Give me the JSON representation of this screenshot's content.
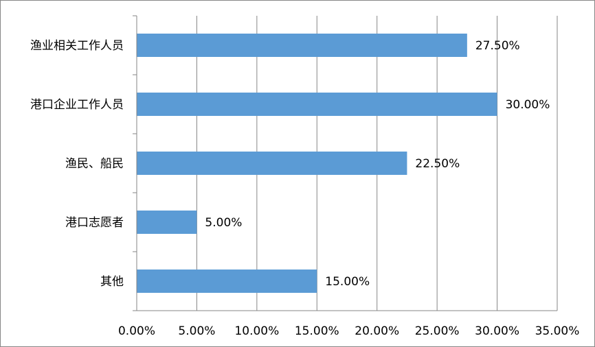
{
  "chart_data": {
    "type": "bar",
    "orientation": "horizontal",
    "categories": [
      "渔业相关工作人员",
      "港口企业工作人员",
      "渔民、船民",
      "港口志愿者",
      "其他"
    ],
    "values": [
      27.5,
      30.0,
      22.5,
      5.0,
      15.0
    ],
    "data_labels": [
      "27.50%",
      "30.00%",
      "22.50%",
      "5.00%",
      "15.00%"
    ],
    "x_ticks": [
      "0.00%",
      "5.00%",
      "10.00%",
      "15.00%",
      "20.00%",
      "25.00%",
      "30.00%",
      "35.00%"
    ],
    "xlim": [
      0,
      35
    ],
    "title": "",
    "xlabel": "",
    "ylabel": "",
    "grid": "vertical",
    "legend": "none",
    "colors": {
      "bar": "#5b9bd5",
      "grid": "#868686",
      "axis": "#868686",
      "text": "#000000"
    }
  }
}
